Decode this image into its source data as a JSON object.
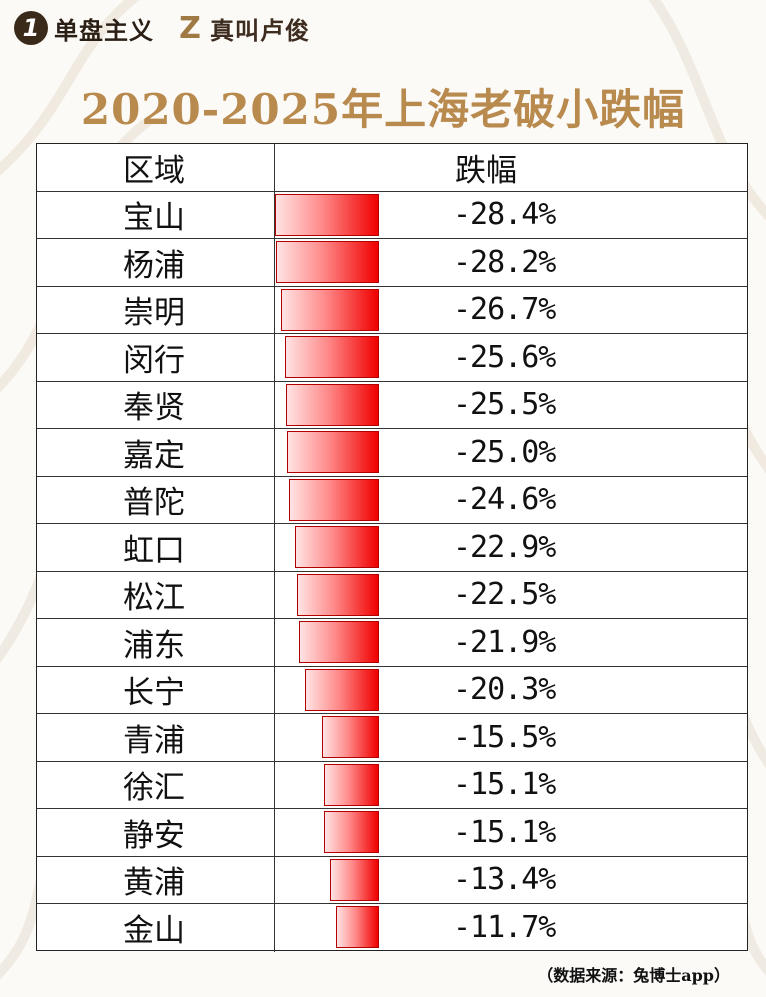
{
  "brand": {
    "items": [
      {
        "icon": "1",
        "text": "单盘主义"
      },
      {
        "icon": "Z",
        "text": "真叫卢俊"
      }
    ]
  },
  "title": "2020-2025年上海老破小跌幅",
  "table": {
    "headers": [
      "区域",
      "跌幅"
    ]
  },
  "source": "（数据来源：兔博士app）",
  "colors": {
    "accent": "#b98a4e",
    "bar": "#f00000"
  },
  "chart_data": {
    "type": "bar",
    "title": "2020-2025年上海老破小跌幅",
    "categories": [
      "宝山",
      "杨浦",
      "崇明",
      "闵行",
      "奉贤",
      "嘉定",
      "普陀",
      "虹口",
      "松江",
      "浦东",
      "长宁",
      "青浦",
      "徐汇",
      "静安",
      "黄浦",
      "金山"
    ],
    "values": [
      -28.4,
      -28.2,
      -26.7,
      -25.6,
      -25.5,
      -25.0,
      -24.6,
      -22.9,
      -22.5,
      -21.9,
      -20.3,
      -15.5,
      -15.1,
      -15.1,
      -13.4,
      -11.7
    ],
    "labels": [
      "-28.4%",
      "-28.2%",
      "-26.7%",
      "-25.6%",
      "-25.5%",
      "-25.0%",
      "-24.6%",
      "-22.9%",
      "-22.5%",
      "-21.9%",
      "-20.3%",
      "-15.5%",
      "-15.1%",
      "-15.1%",
      "-13.4%",
      "-11.7%"
    ],
    "xlabel": "区域",
    "ylabel": "跌幅"
  }
}
